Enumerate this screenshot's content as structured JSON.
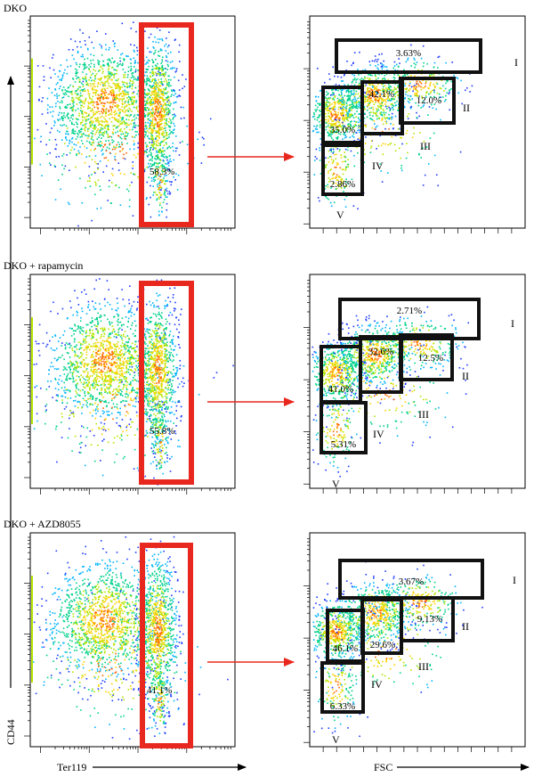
{
  "figure": {
    "y_axis_label": "CD44",
    "x_axis_label_left": "Ter119",
    "x_axis_label_right": "FSC"
  },
  "colors": {
    "gate_red": "#e8281e",
    "gate_black": "#111111",
    "arrow_red": "#e8281e",
    "density": [
      "#1e3cff",
      "#00b4ff",
      "#00d28c",
      "#b4e600",
      "#ffd200",
      "#ff6400",
      "#e61e00"
    ]
  },
  "rows": [
    {
      "title": "DKO",
      "ter119_gate_label": "58.3%",
      "gates": [
        {
          "roman": "I",
          "percent": "3.63%"
        },
        {
          "roman": "II",
          "percent": "12.0%"
        },
        {
          "roman": "III",
          "percent": "42.1%"
        },
        {
          "roman": "IV",
          "percent": "35.0%"
        },
        {
          "roman": "V",
          "percent": "2.86%"
        }
      ]
    },
    {
      "title": "DKO + rapamycin",
      "ter119_gate_label": "55.8%",
      "gates": [
        {
          "roman": "I",
          "percent": "2.71%"
        },
        {
          "roman": "II",
          "percent": "12.5%"
        },
        {
          "roman": "III",
          "percent": "32.6%"
        },
        {
          "roman": "IV",
          "percent": "41.0%"
        },
        {
          "roman": "V",
          "percent": "5.31%"
        }
      ]
    },
    {
      "title": "DKO + AZD8055",
      "ter119_gate_label": "41.1%",
      "gates": [
        {
          "roman": "I",
          "percent": "3.67%"
        },
        {
          "roman": "II",
          "percent": "9.13%"
        },
        {
          "roman": "III",
          "percent": "29.6%"
        },
        {
          "roman": "IV",
          "percent": "46.1%"
        },
        {
          "roman": "V",
          "percent": "6.33%"
        }
      ]
    }
  ],
  "chart_data": [
    {
      "type": "scatter",
      "title": "DKO",
      "xlabel": "Ter119",
      "ylabel": "CD44",
      "gates": [
        {
          "name": "Ter119+",
          "value": 58.3
        }
      ]
    },
    {
      "type": "scatter",
      "title": "DKO",
      "xlabel": "FSC",
      "ylabel": "CD44",
      "gates": [
        {
          "name": "I",
          "value": 3.63
        },
        {
          "name": "II",
          "value": 12.0
        },
        {
          "name": "III",
          "value": 42.1
        },
        {
          "name": "IV",
          "value": 35.0
        },
        {
          "name": "V",
          "value": 2.86
        }
      ]
    },
    {
      "type": "scatter",
      "title": "DKO + rapamycin",
      "xlabel": "Ter119",
      "ylabel": "CD44",
      "gates": [
        {
          "name": "Ter119+",
          "value": 55.8
        }
      ]
    },
    {
      "type": "scatter",
      "title": "DKO + rapamycin",
      "xlabel": "FSC",
      "ylabel": "CD44",
      "gates": [
        {
          "name": "I",
          "value": 2.71
        },
        {
          "name": "II",
          "value": 12.5
        },
        {
          "name": "III",
          "value": 32.6
        },
        {
          "name": "IV",
          "value": 41.0
        },
        {
          "name": "V",
          "value": 5.31
        }
      ]
    },
    {
      "type": "scatter",
      "title": "DKO + AZD8055",
      "xlabel": "Ter119",
      "ylabel": "CD44",
      "gates": [
        {
          "name": "Ter119+",
          "value": 41.1
        }
      ]
    },
    {
      "type": "scatter",
      "title": "DKO + AZD8055",
      "xlabel": "FSC",
      "ylabel": "CD44",
      "gates": [
        {
          "name": "I",
          "value": 3.67
        },
        {
          "name": "II",
          "value": 9.13
        },
        {
          "name": "III",
          "value": 29.6
        },
        {
          "name": "IV",
          "value": 46.1
        },
        {
          "name": "V",
          "value": 6.33
        }
      ]
    }
  ]
}
